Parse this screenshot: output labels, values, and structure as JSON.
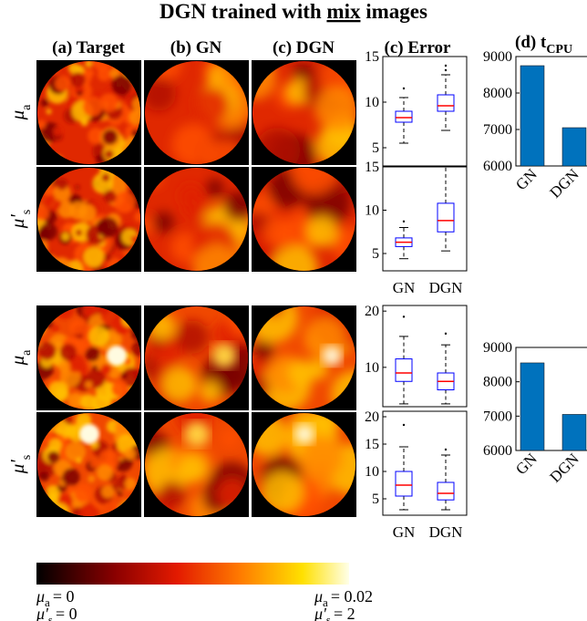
{
  "title": {
    "before": "DGN trained with",
    "underlined": "mix",
    "after": "images"
  },
  "column_headers": [
    "(a) Target",
    "(b) GN",
    "(c) DGN",
    "(c) Error"
  ],
  "cpu_header": {
    "text": "(d) t",
    "sub": "CPU"
  },
  "row_labels": [
    {
      "base": "μ",
      "sub": "a"
    },
    {
      "base": "μ'",
      "sub": "s"
    },
    {
      "base": "μ",
      "sub": "a"
    },
    {
      "base": "μ'",
      "sub": "s"
    }
  ],
  "colorbar": {
    "min_labels": [
      {
        "base": "μ",
        "sub": "a",
        "rest": "= 0"
      },
      {
        "base": "μ'",
        "sub": "s",
        "rest": "= 0"
      }
    ],
    "max_labels": [
      {
        "base": "μ",
        "sub": "a",
        "rest": "= 0.02"
      },
      {
        "base": "μ'",
        "sub": "s",
        "rest": "= 2"
      }
    ]
  },
  "chart_data": [
    {
      "type": "box",
      "ylim": [
        3,
        15
      ],
      "yticks": [
        5,
        10,
        15
      ],
      "color": "#0000ff",
      "median_color": "#ff0000",
      "boxes": [
        {
          "whislo": 5.5,
          "q1": 7.8,
          "med": 8.3,
          "q3": 9.0,
          "whishi": 10.5,
          "fliers": [
            11.5
          ]
        },
        {
          "whislo": 6.9,
          "q1": 9.0,
          "med": 9.6,
          "q3": 10.8,
          "whishi": 13.0,
          "fliers": [
            13.5,
            14.0
          ]
        }
      ]
    },
    {
      "type": "box",
      "ylim": [
        3,
        15
      ],
      "yticks": [
        5,
        10,
        15
      ],
      "color": "#0000ff",
      "median_color": "#ff0000",
      "categories": [
        "GN",
        "DGN"
      ],
      "boxes": [
        {
          "whislo": 4.4,
          "q1": 5.8,
          "med": 6.3,
          "q3": 6.8,
          "whishi": 8.0,
          "fliers": [
            8.7
          ]
        },
        {
          "whislo": 5.3,
          "q1": 7.5,
          "med": 8.8,
          "q3": 10.8,
          "whishi": 15.0,
          "fliers": []
        }
      ]
    },
    {
      "type": "box",
      "ylim": [
        3,
        21
      ],
      "yticks": [
        10,
        20
      ],
      "color": "#0000ff",
      "median_color": "#ff0000",
      "boxes": [
        {
          "whislo": 3.5,
          "q1": 7.5,
          "med": 9.0,
          "q3": 11.5,
          "whishi": 15.5,
          "fliers": [
            19.0
          ]
        },
        {
          "whislo": 3.5,
          "q1": 6.0,
          "med": 7.5,
          "q3": 9.0,
          "whishi": 14.0,
          "fliers": [
            16.0
          ]
        }
      ]
    },
    {
      "type": "box",
      "ylim": [
        2,
        21
      ],
      "yticks": [
        5,
        10,
        15,
        20
      ],
      "color": "#0000ff",
      "median_color": "#ff0000",
      "categories": [
        "GN",
        "DGN"
      ],
      "boxes": [
        {
          "whislo": 3.0,
          "q1": 5.5,
          "med": 7.5,
          "q3": 10.0,
          "whishi": 14.5,
          "fliers": [
            18.5
          ]
        },
        {
          "whislo": 3.0,
          "q1": 4.8,
          "med": 6.0,
          "q3": 8.0,
          "whishi": 13.0,
          "fliers": [
            14.0
          ]
        }
      ]
    },
    {
      "type": "bar",
      "categories": [
        "GN",
        "DGN"
      ],
      "values": [
        8750,
        7050
      ],
      "color": "#0072bd",
      "ylim": [
        6000,
        9000
      ],
      "yticks": [
        6000,
        7000,
        8000,
        9000
      ]
    },
    {
      "type": "bar",
      "categories": [
        "GN",
        "DGN"
      ],
      "values": [
        8550,
        7050
      ],
      "color": "#0072bd",
      "ylim": [
        6000,
        9000
      ],
      "yticks": [
        6000,
        7000,
        8000,
        9000
      ]
    }
  ]
}
